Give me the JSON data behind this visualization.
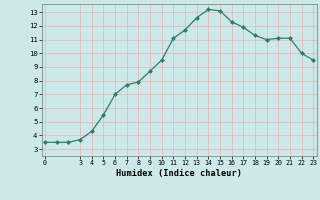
{
  "x": [
    0,
    1,
    2,
    3,
    4,
    5,
    6,
    7,
    8,
    9,
    10,
    11,
    12,
    13,
    14,
    15,
    16,
    17,
    18,
    19,
    20,
    21,
    22,
    23
  ],
  "y": [
    3.5,
    3.5,
    3.5,
    3.7,
    4.3,
    5.5,
    7.0,
    7.7,
    7.9,
    8.7,
    9.5,
    11.1,
    11.7,
    12.6,
    13.2,
    13.1,
    12.3,
    11.9,
    11.3,
    11.0,
    11.1,
    11.1,
    10.0,
    9.5
  ],
  "x_ticks": [
    0,
    3,
    4,
    5,
    6,
    7,
    8,
    9,
    10,
    11,
    12,
    13,
    14,
    15,
    16,
    17,
    18,
    19,
    20,
    21,
    22,
    23
  ],
  "y_ticks": [
    3,
    4,
    5,
    6,
    7,
    8,
    9,
    10,
    11,
    12,
    13
  ],
  "xlabel": "Humidex (Indice chaleur)",
  "ylim": [
    2.5,
    13.6
  ],
  "xlim": [
    -0.3,
    23.3
  ],
  "line_color": "#2e7d6d",
  "marker_color": "#2e7d6d",
  "bg_color": "#cce8e8",
  "grid_color_major": "#e8b4b4",
  "grid_color_minor": "#ddd0d0"
}
